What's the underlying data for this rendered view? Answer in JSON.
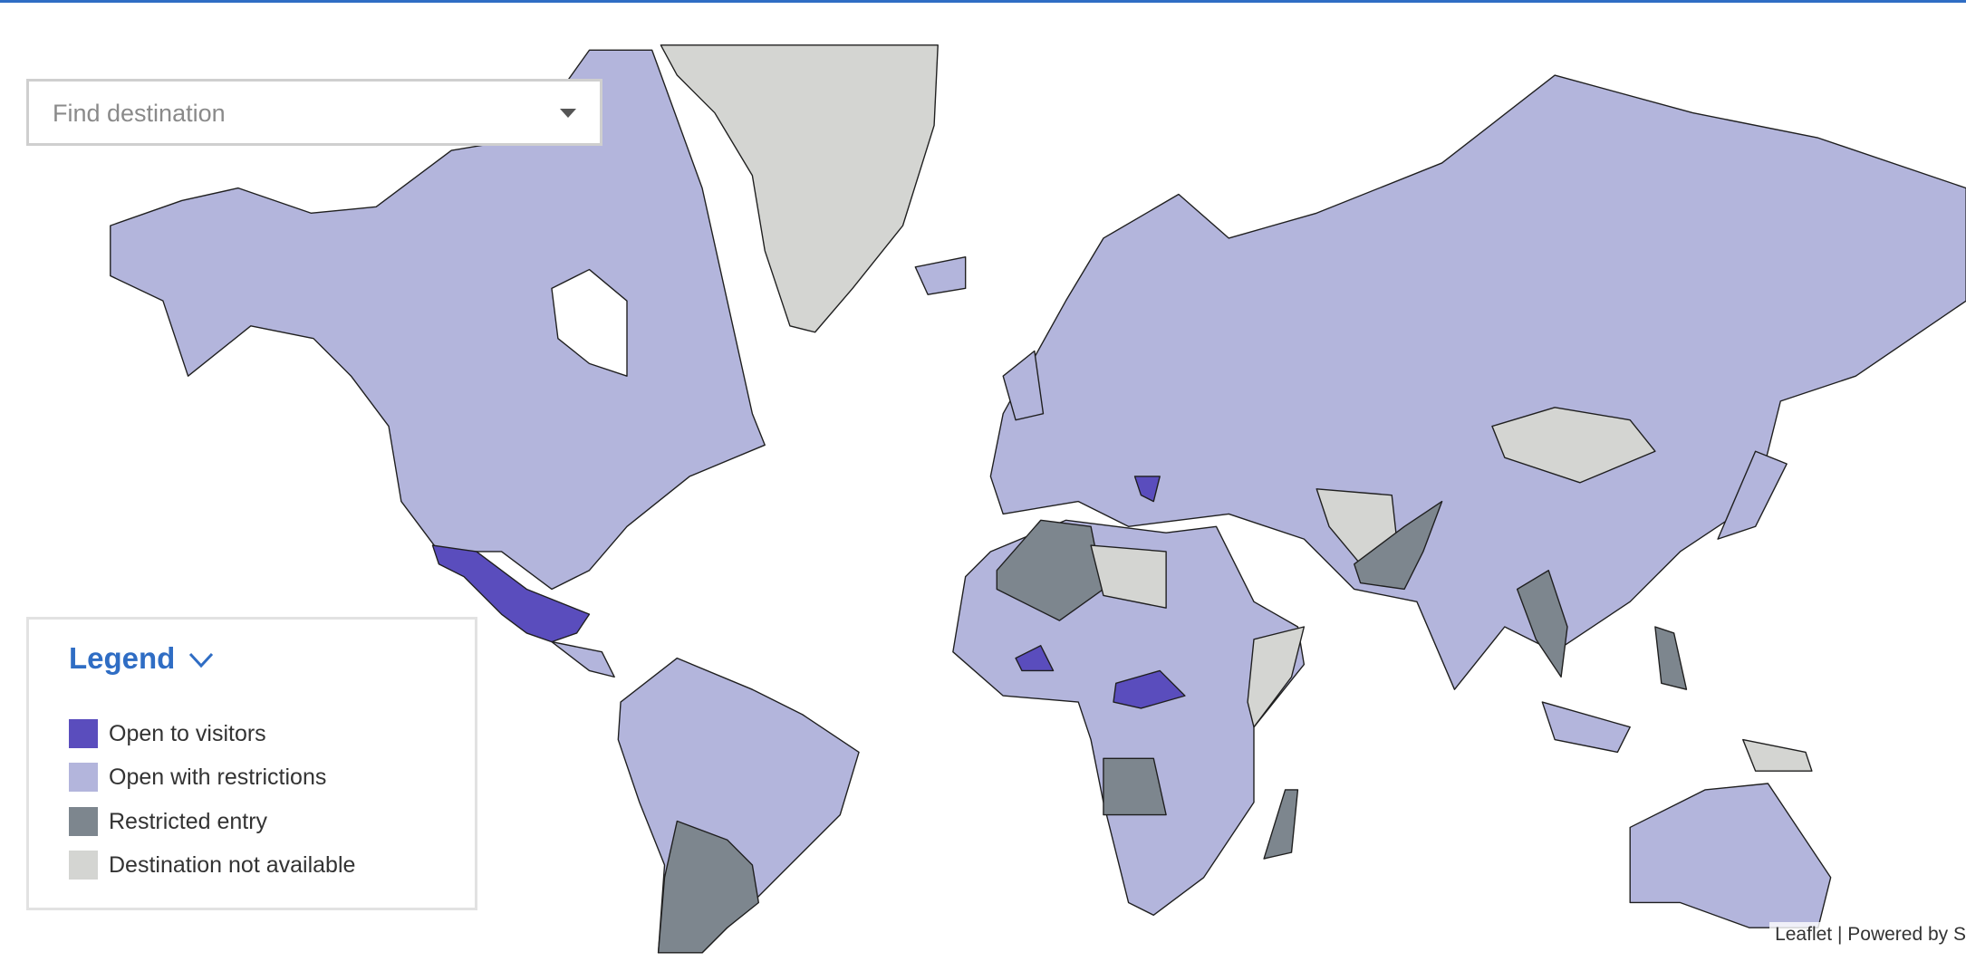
{
  "search": {
    "placeholder": "Find destination"
  },
  "legend": {
    "title": "Legend",
    "items": [
      "Open to visitors",
      "Open with restrictions",
      "Restricted entry",
      "Destination not available"
    ]
  },
  "attribution": "Leaflet | Powered by S"
}
